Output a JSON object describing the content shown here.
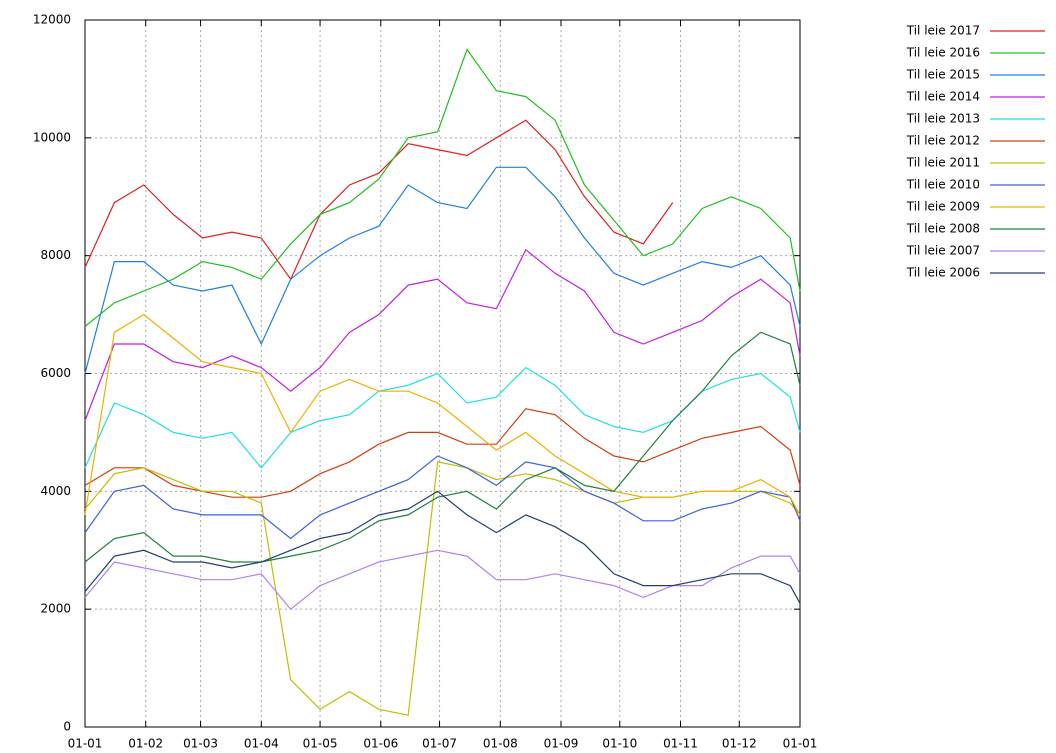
{
  "chart_data": {
    "type": "line",
    "legend": "right",
    "grid": true,
    "x": [
      0,
      15,
      30,
      45,
      60,
      75,
      90,
      105,
      120,
      135,
      150,
      165,
      180,
      195,
      210,
      225,
      240,
      255,
      270,
      285,
      300,
      315,
      330,
      345,
      360,
      365
    ],
    "xlim": [
      0,
      365
    ],
    "xticks": [
      {
        "value": 0,
        "label": "01-01"
      },
      {
        "value": 31,
        "label": "01-02"
      },
      {
        "value": 59,
        "label": "01-03"
      },
      {
        "value": 90,
        "label": "01-04"
      },
      {
        "value": 120,
        "label": "01-05"
      },
      {
        "value": 151,
        "label": "01-06"
      },
      {
        "value": 181,
        "label": "01-07"
      },
      {
        "value": 212,
        "label": "01-08"
      },
      {
        "value": 243,
        "label": "01-09"
      },
      {
        "value": 273,
        "label": "01-10"
      },
      {
        "value": 304,
        "label": "01-11"
      },
      {
        "value": 334,
        "label": "01-12"
      },
      {
        "value": 365,
        "label": "01-01"
      }
    ],
    "ylim": [
      0,
      12000
    ],
    "yticks": [
      0,
      2000,
      4000,
      6000,
      8000,
      10000,
      12000
    ],
    "series": [
      {
        "name": "Til leie 2017",
        "color": "#e02020",
        "values": [
          7800,
          8900,
          9200,
          8700,
          8300,
          8400,
          8300,
          7600,
          8700,
          9200,
          9400,
          9900,
          9800,
          9700,
          10000,
          10300,
          9800,
          9000,
          8400,
          8200,
          8900,
          null,
          null,
          null,
          null,
          null
        ]
      },
      {
        "name": "Til leie 2016",
        "color": "#20c020",
        "values": [
          6800,
          7200,
          7400,
          7600,
          7900,
          7800,
          7600,
          8200,
          8700,
          8900,
          9300,
          10000,
          10100,
          11500,
          10800,
          10700,
          10300,
          9200,
          8600,
          8000,
          8200,
          8800,
          9000,
          8800,
          8300,
          7400
        ]
      },
      {
        "name": "Til leie 2015",
        "color": "#2080e0",
        "values": [
          6000,
          7900,
          7900,
          7500,
          7400,
          7500,
          6500,
          7600,
          8000,
          8300,
          8500,
          9200,
          8900,
          8800,
          9500,
          9500,
          9000,
          8300,
          7700,
          7500,
          7700,
          7900,
          7800,
          8000,
          7500,
          6800
        ]
      },
      {
        "name": "Til leie 2014",
        "color": "#c020e0",
        "values": [
          5200,
          6500,
          6500,
          6200,
          6100,
          6300,
          6100,
          5700,
          6100,
          6700,
          7000,
          7500,
          7600,
          7200,
          7100,
          8100,
          7700,
          7400,
          6700,
          6500,
          6700,
          6900,
          7300,
          7600,
          7200,
          6300
        ]
      },
      {
        "name": "Til leie 2013",
        "color": "#20e0e0",
        "values": [
          4400,
          5500,
          5300,
          5000,
          4900,
          5000,
          4400,
          5000,
          5200,
          5300,
          5700,
          5800,
          6000,
          5500,
          5600,
          6100,
          5800,
          5300,
          5100,
          5000,
          5200,
          5700,
          5900,
          6000,
          5600,
          5000
        ]
      },
      {
        "name": "Til leie 2012",
        "color": "#d04010",
        "values": [
          4100,
          4400,
          4400,
          4100,
          4000,
          3900,
          3900,
          4000,
          4300,
          4500,
          4800,
          5000,
          5000,
          4800,
          4800,
          5400,
          5300,
          4900,
          4600,
          4500,
          4700,
          4900,
          5000,
          5100,
          4700,
          4100
        ]
      },
      {
        "name": "Til leie 2011",
        "color": "#c0c000",
        "values": [
          3700,
          4300,
          4400,
          4200,
          4000,
          4000,
          3800,
          800,
          300,
          600,
          300,
          200,
          4500,
          4400,
          4200,
          4300,
          4200,
          4000,
          3800,
          3900,
          3900,
          4000,
          4000,
          4000,
          3800,
          3600
        ]
      },
      {
        "name": "Til leie 2010",
        "color": "#4060e0",
        "values": [
          3300,
          4000,
          4100,
          3700,
          3600,
          3600,
          3600,
          3200,
          3600,
          3800,
          4000,
          4200,
          4600,
          4400,
          4100,
          4500,
          4400,
          4000,
          3800,
          3500,
          3500,
          3700,
          3800,
          4000,
          3900,
          3500
        ]
      },
      {
        "name": "Til leie 2009",
        "color": "#f0b000",
        "values": [
          3600,
          6700,
          7000,
          6600,
          6200,
          6100,
          6000,
          5000,
          5700,
          5900,
          5700,
          5700,
          5500,
          5100,
          4700,
          5000,
          4600,
          4300,
          4000,
          3900,
          3900,
          4000,
          4000,
          4200,
          3900,
          3600
        ]
      },
      {
        "name": "Til leie 2008",
        "color": "#208040",
        "values": [
          2800,
          3200,
          3300,
          2900,
          2900,
          2800,
          2800,
          2900,
          3000,
          3200,
          3500,
          3600,
          3900,
          4000,
          3700,
          4200,
          4400,
          4100,
          4000,
          4600,
          5200,
          5700,
          6300,
          6700,
          6500,
          5800
        ]
      },
      {
        "name": "Til leie 2007",
        "color": "#b080f0",
        "values": [
          2200,
          2800,
          2700,
          2600,
          2500,
          2500,
          2600,
          2000,
          2400,
          2600,
          2800,
          2900,
          3000,
          2900,
          2500,
          2500,
          2600,
          2500,
          2400,
          2200,
          2400,
          2400,
          2700,
          2900,
          2900,
          2600
        ]
      },
      {
        "name": "Til leie 2006",
        "color": "#204070",
        "values": [
          2300,
          2900,
          3000,
          2800,
          2800,
          2700,
          2800,
          3000,
          3200,
          3300,
          3600,
          3700,
          4000,
          3600,
          3300,
          3600,
          3400,
          3100,
          2600,
          2400,
          2400,
          2500,
          2600,
          2600,
          2400,
          2100
        ]
      }
    ]
  }
}
